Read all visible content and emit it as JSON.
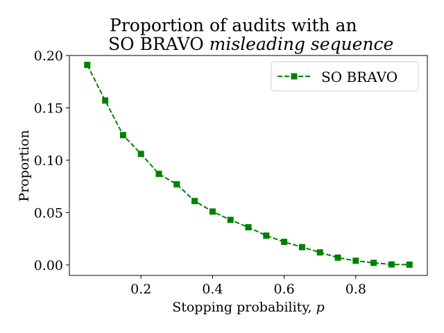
{
  "chart_data": {
    "type": "line",
    "title_line1": "Proportion of audits with an",
    "title_line2_prefix": "SO ",
    "title_line2_bravo": "BRAVO",
    "title_line2_italic": "misleading sequence",
    "xlabel_text": "Stopping probability, ",
    "xlabel_var": "p",
    "ylabel": "Proportion",
    "xlim": [
      0.0,
      1.0
    ],
    "ylim": [
      -0.01,
      0.2
    ],
    "xticks": [
      0.2,
      0.4,
      0.6,
      0.8
    ],
    "xtick_labels": [
      "0.2",
      "0.4",
      "0.6",
      "0.8"
    ],
    "yticks": [
      0.0,
      0.05,
      0.1,
      0.15,
      0.2
    ],
    "ytick_labels": [
      "0.00",
      "0.05",
      "0.10",
      "0.15",
      "0.20"
    ],
    "grid": false,
    "legend_position": "top-right",
    "series": [
      {
        "name_prefix": "SO ",
        "name_bravo": "BRAVO",
        "color": "#008000",
        "marker": "square",
        "linestyle": "dashed",
        "x": [
          0.05,
          0.1,
          0.15,
          0.2,
          0.25,
          0.3,
          0.35,
          0.4,
          0.45,
          0.5,
          0.55,
          0.6,
          0.65,
          0.7,
          0.75,
          0.8,
          0.85,
          0.9,
          0.95
        ],
        "y": [
          0.191,
          0.157,
          0.124,
          0.106,
          0.087,
          0.077,
          0.061,
          0.051,
          0.043,
          0.036,
          0.028,
          0.022,
          0.017,
          0.012,
          0.007,
          0.004,
          0.002,
          0.0005,
          0.0003
        ]
      }
    ]
  }
}
